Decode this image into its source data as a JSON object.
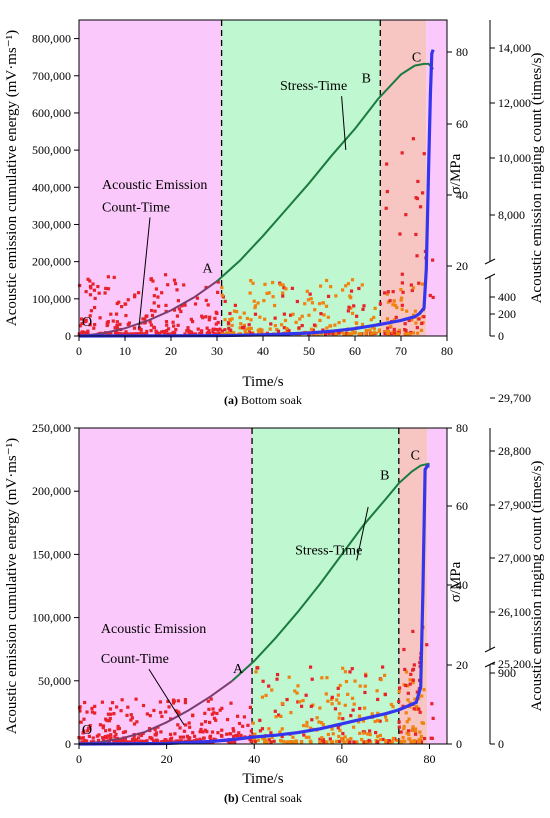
{
  "colors": {
    "zone1": "#fbc8fb",
    "zone2": "#bff7d0",
    "zone3": "#f7c6c2",
    "stress_line": "#1b7a3e",
    "stress_early": "#7d3c6e",
    "ae_points": "#e8222a",
    "ae_points_alt": "#f0820f",
    "cumulative_energy": "#3535ee"
  },
  "chart_data": [
    {
      "type": "line",
      "caption_prefix": "(a)",
      "caption_text": " Bottom soak",
      "xlabel": "Time/s",
      "ylabel": "Acoustic emission cumulative energy (mV·ms⁻¹)",
      "ylabel_stress": "σ/MPa",
      "ylabel_count": "Acoustic emission ringing count (times/s)",
      "xlim": [
        0,
        80
      ],
      "x_ticks": [
        "0",
        "10",
        "20",
        "30",
        "40",
        "50",
        "60",
        "70",
        "80"
      ],
      "ylim": [
        0,
        850000
      ],
      "y_ticks": [
        "0",
        "100,000",
        "200,000",
        "300,000",
        "400,000",
        "500,000",
        "600,000",
        "700,000",
        "800,000"
      ],
      "stress_ticks": [
        "20",
        "40",
        "60",
        "80"
      ],
      "stress_lim": [
        0,
        90
      ],
      "count_ticks_low": [
        "0",
        "200",
        "400"
      ],
      "count_ticks_high": [
        "8,000",
        "10,000",
        "12,000",
        "14,000"
      ],
      "zones": [
        [
          0,
          31
        ],
        [
          31,
          65.5
        ],
        [
          65.5,
          75.5
        ],
        [
          75.5,
          80
        ]
      ],
      "boundaries": [
        31,
        65.5
      ],
      "point_labels": [
        {
          "label": "O",
          "x": 0,
          "stress": 0
        },
        {
          "label": "A",
          "x": 31,
          "stress": 17
        },
        {
          "label": "B",
          "x": 65.5,
          "stress": 71
        },
        {
          "label": "C",
          "x": 76,
          "stress": 77
        }
      ],
      "series": [
        {
          "name": "Stress-Time",
          "axis": "stress (MPa)",
          "x": [
            0,
            5,
            10,
            15,
            20,
            25,
            30,
            35,
            40,
            45,
            50,
            55,
            60,
            65,
            70,
            73,
            75,
            76,
            77
          ],
          "values": [
            0,
            0.7,
            2.2,
            4.4,
            7.3,
            11,
            15.6,
            21.5,
            28.5,
            36,
            43.5,
            51.5,
            59,
            67.5,
            74.5,
            77,
            77.5,
            77.5,
            76
          ]
        },
        {
          "name": "Acoustic emission cumulative energy",
          "axis": "cumulative energy (mV·ms⁻¹)",
          "x": [
            0,
            20,
            30,
            40,
            50,
            55,
            60,
            65,
            70,
            73,
            74,
            75,
            75.5,
            76,
            76.4,
            76.7,
            77
          ],
          "values": [
            0,
            500,
            1200,
            3000,
            8000,
            13000,
            20000,
            30000,
            42000,
            52000,
            60000,
            75000,
            180000,
            450000,
            650000,
            760000,
            770000
          ]
        }
      ],
      "annotations": [
        {
          "text": "Stress-Time",
          "x": 51,
          "stress": 70,
          "arrow_to_x": 58,
          "arrow_to_stress": 53
        },
        {
          "text": "Acoustic Emission",
          "x": 5,
          "energy": 395000
        },
        {
          "text": "Count-Time",
          "x": 5,
          "energy": 335000,
          "arrow_to_x": 13,
          "arrow_to_energy": 20000
        }
      ]
    },
    {
      "type": "line",
      "caption_prefix": "(b)",
      "caption_text": " Central soak",
      "xlabel": "Time/s",
      "ylabel": "Acoustic emission cumulative energy (mV·ms⁻¹)",
      "ylabel_stress": "σ/MPa",
      "ylabel_count": "Acoustic emission ringing count (times/s)",
      "xlim": [
        0,
        84
      ],
      "x_ticks": [
        "0",
        "20",
        "40",
        "60",
        "80"
      ],
      "ylim": [
        0,
        250000
      ],
      "y_ticks": [
        "0",
        "50,000",
        "100,000",
        "150,000",
        "200,000",
        "250,000"
      ],
      "stress_ticks": [
        "0",
        "20",
        "40",
        "60",
        "80"
      ],
      "stress_lim": [
        0,
        80
      ],
      "count_ticks_low": [
        "0",
        "900"
      ],
      "count_ticks_high": [
        "25,200",
        "26,100",
        "27,000",
        "27,900",
        "28,800",
        "29,700"
      ],
      "zones": [
        [
          0,
          39.5
        ],
        [
          39.5,
          73
        ],
        [
          73,
          79.5
        ],
        [
          79.5,
          84
        ]
      ],
      "boundaries": [
        39.5,
        73
      ],
      "point_labels": [
        {
          "label": "O",
          "x": 0,
          "stress": 0
        },
        {
          "label": "A",
          "x": 39.5,
          "stress": 17
        },
        {
          "label": "B",
          "x": 73,
          "stress": 66
        },
        {
          "label": "C",
          "x": 79.5,
          "stress": 71
        }
      ],
      "series": [
        {
          "name": "Stress-Time",
          "axis": "stress (MPa)",
          "x": [
            0,
            5,
            10,
            15,
            20,
            25,
            30,
            35,
            40,
            45,
            50,
            55,
            60,
            65,
            70,
            73,
            76,
            78,
            80
          ],
          "values": [
            0,
            0.5,
            1.5,
            3,
            5.5,
            8.5,
            12,
            16,
            21,
            27,
            33.5,
            40.5,
            48,
            55.5,
            62,
            66,
            69,
            70.5,
            71
          ]
        },
        {
          "name": "Acoustic emission cumulative energy",
          "axis": "cumulative energy (mV·ms⁻¹)",
          "x": [
            0,
            20,
            30,
            35,
            40,
            45,
            50,
            55,
            60,
            65,
            70,
            73,
            75,
            77,
            78,
            78.5,
            79,
            79.5,
            80
          ],
          "values": [
            0,
            400,
            2000,
            3500,
            5500,
            7000,
            9000,
            12000,
            16000,
            20000,
            24000,
            27000,
            30000,
            33000,
            45000,
            120000,
            217000,
            220000,
            220000
          ]
        }
      ],
      "annotations": [
        {
          "text": "Stress-Time",
          "x": 57,
          "stress": 48,
          "arrow_to_x": 66,
          "arrow_to_stress": 60
        },
        {
          "text": "Acoustic Emission",
          "x": 5,
          "energy": 88000
        },
        {
          "text": "Count-Time",
          "x": 5,
          "energy": 64000,
          "arrow_to_x": 24,
          "arrow_to_energy": 15000
        }
      ]
    }
  ]
}
